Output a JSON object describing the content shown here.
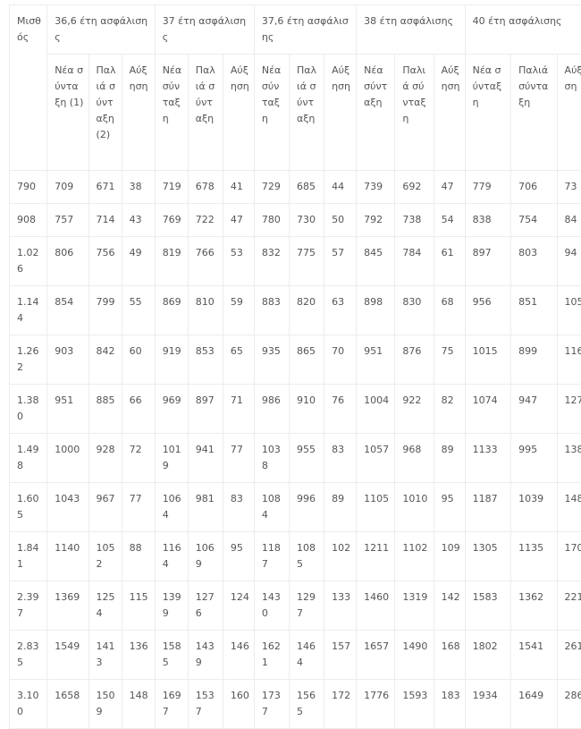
{
  "table": {
    "corner": "Μισθός",
    "groups": [
      "36,6 έτη ασφάλισης",
      "37 έτη ασφάλισης",
      "37,6 έτη ασφάλισης",
      "38 έτη ασφάλισης",
      "40 έτη ασφάλισης"
    ],
    "subheaders": [
      [
        "Νέα σύνταξη (1)",
        "Παλιά σύνταξη (2)",
        "Αύξηση"
      ],
      [
        "Νέα σύνταξη",
        "Παλιά σύνταξη",
        "Αύξηση"
      ],
      [
        "Νέα σύνταξη",
        "Παλιά σύνταξη",
        "Αύξηση"
      ],
      [
        "Νέα σύνταξη",
        "Παλιά σύνταξη",
        "Αύξηση"
      ],
      [
        "Νέα σύνταξη",
        "Παλιά σύνταξη",
        "Αύξηση"
      ]
    ],
    "rows": [
      [
        "790",
        "709",
        "671",
        "38",
        "719",
        "678",
        "41",
        "729",
        "685",
        "44",
        "739",
        "692",
        "47",
        "779",
        "706",
        "73"
      ],
      [
        "908",
        "757",
        "714",
        "43",
        "769",
        "722",
        "47",
        "780",
        "730",
        "50",
        "792",
        "738",
        "54",
        "838",
        "754",
        "84"
      ],
      [
        "1.026",
        "806",
        "756",
        "49",
        "819",
        "766",
        "53",
        "832",
        "775",
        "57",
        "845",
        "784",
        "61",
        "897",
        "803",
        "94"
      ],
      [
        "1.144",
        "854",
        "799",
        "55",
        "869",
        "810",
        "59",
        "883",
        "820",
        "63",
        "898",
        "830",
        "68",
        "956",
        "851",
        "105"
      ],
      [
        "1.262",
        "903",
        "842",
        "60",
        "919",
        "853",
        "65",
        "935",
        "865",
        "70",
        "951",
        "876",
        "75",
        "1015",
        "899",
        "116"
      ],
      [
        "1.380",
        "951",
        "885",
        "66",
        "969",
        "897",
        "71",
        "986",
        "910",
        "76",
        "1004",
        "922",
        "82",
        "1074",
        "947",
        "127"
      ],
      [
        "1.498",
        "1000",
        "928",
        "72",
        "1019",
        "941",
        "77",
        "1038",
        "955",
        "83",
        "1057",
        "968",
        "89",
        "1133",
        "995",
        "138"
      ],
      [
        "1.605",
        "1043",
        "967",
        "77",
        "1064",
        "981",
        "83",
        "1084",
        "996",
        "89",
        "1105",
        "1010",
        "95",
        "1187",
        "1039",
        "148"
      ],
      [
        "1.841",
        "1140",
        "1052",
        "88",
        "1164",
        "1069",
        "95",
        "1187",
        "1085",
        "102",
        "1211",
        "1102",
        "109",
        "1305",
        "1135",
        "170"
      ],
      [
        "2.397",
        "1369",
        "1254",
        "115",
        "1399",
        "1276",
        "124",
        "1430",
        "1297",
        "133",
        "1460",
        "1319",
        "142",
        "1583",
        "1362",
        "221"
      ],
      [
        "2.835",
        "1549",
        "1413",
        "136",
        "1585",
        "1439",
        "146",
        "1621",
        "1464",
        "157",
        "1657",
        "1490",
        "168",
        "1802",
        "1541",
        "261"
      ],
      [
        "3.100",
        "1658",
        "1509",
        "148",
        "1697",
        "1537",
        "160",
        "1737",
        "1565",
        "172",
        "1776",
        "1593",
        "183",
        "1934",
        "1649",
        "286"
      ]
    ]
  }
}
